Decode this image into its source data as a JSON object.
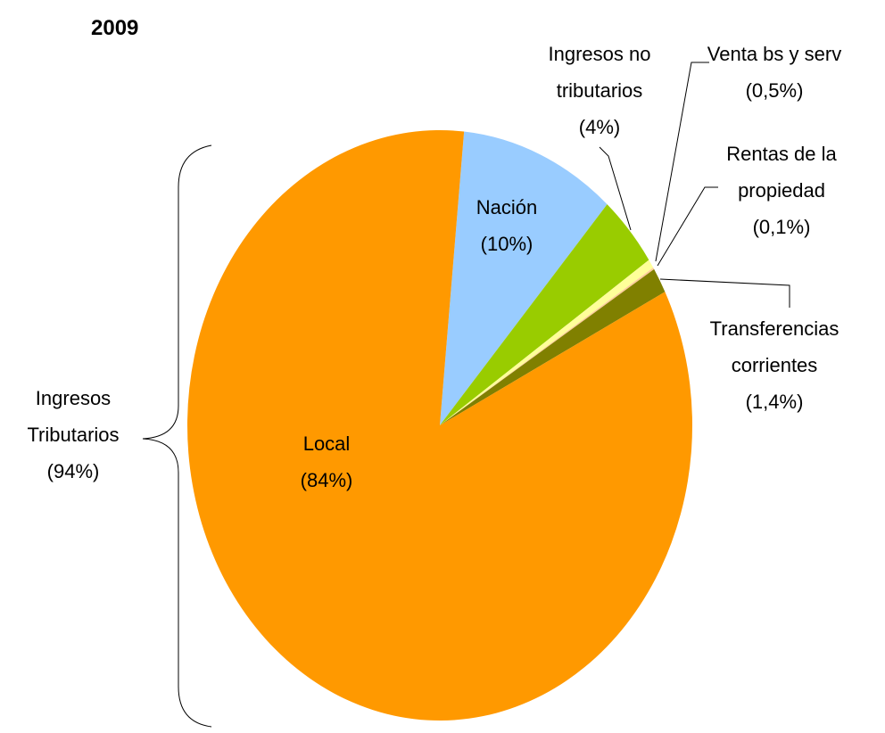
{
  "chart_data": {
    "type": "pie",
    "title": "2009",
    "categories": [
      "Nación",
      "Ingresos no tributarios",
      "Venta bs y serv",
      "Rentas de la propiedad",
      "Transferencias corrientes",
      "Local"
    ],
    "values": [
      10,
      4,
      0.5,
      0.1,
      1.4,
      84
    ],
    "value_labels": [
      "(10%)",
      "(4%)",
      "(0,5%)",
      "(0,1%)",
      "(1,4%)",
      "(84%)"
    ],
    "colors": [
      "#99ccff",
      "#99cc00",
      "#ffff99",
      "#ffcc99",
      "#808000",
      "#ff9900"
    ],
    "annotations": [
      {
        "text": "Ingresos Tributarios",
        "value": 94,
        "value_label": "(94%)"
      }
    ]
  }
}
